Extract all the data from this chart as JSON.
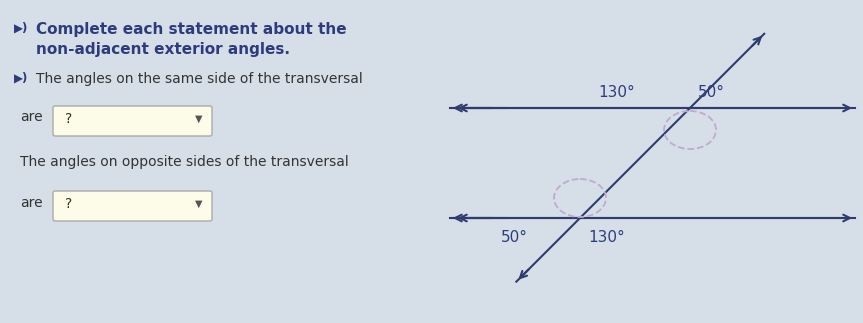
{
  "bg_color": "#d6dfe8",
  "title_line1": "Complete each statement about the",
  "title_line2": "non-adjacent exterior angles.",
  "subtitle1": "The angles on the same side of the transversal",
  "label_are1": "are",
  "subtitle2": "The angles on opposite sides of the transversal",
  "label_are2": "are",
  "dropdown_text": "?",
  "text_color_dark": "#2e3c7e",
  "text_color_body": "#333333",
  "line_color": "#2e3c6e",
  "dashed_arc_color": "#c0aad0",
  "angle_label_color": "#2e3c7e",
  "upper_angle_130_label": "130",
  "upper_angle_50_label": "50",
  "lower_angle_50_label": "50",
  "lower_angle_130_label": "130",
  "degree_symbol": "°",
  "speaker_color": "#2e3c7e",
  "dropdown_border": "#aaaaaa",
  "dropdown_bg": "#fdfce8"
}
